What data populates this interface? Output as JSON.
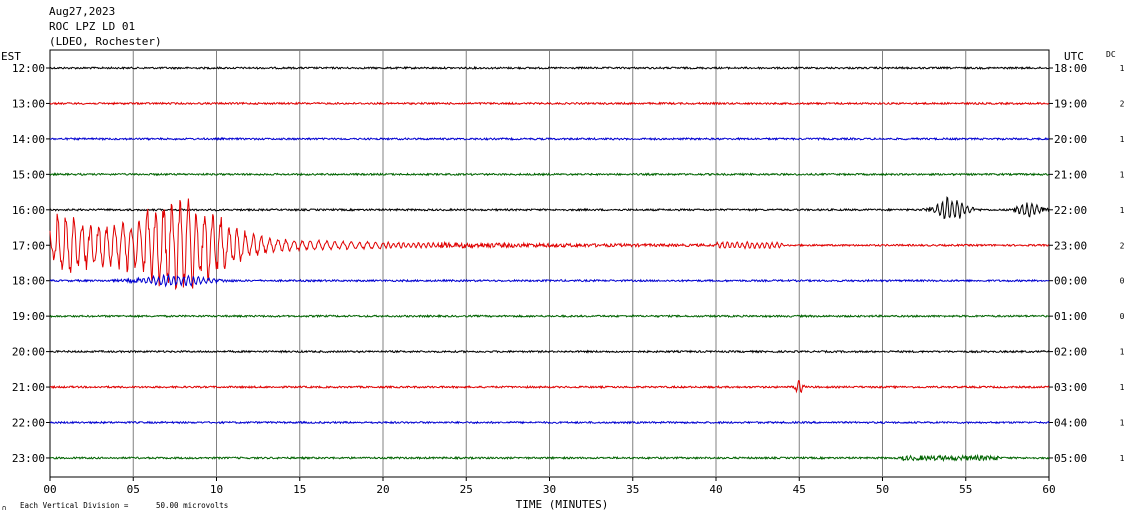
{
  "header": {
    "date": "Aug27,2023",
    "station": "ROC LPZ LD 01",
    "network": "(LDEO, Rochester)"
  },
  "axes": {
    "left_zone": "EST",
    "right_zone": "UTC",
    "dc_label": "DC",
    "xlabel": "TIME (MINUTES)",
    "scale_note": "Each Vertical Division =",
    "scale_value": "50.00 microvolts",
    "corner_mark": "∩"
  },
  "chart_data": {
    "type": "line",
    "title": "",
    "xlabel": "TIME (MINUTES)",
    "xlim": [
      0,
      60
    ],
    "x_ticks": [
      "00",
      "05",
      "10",
      "15",
      "20",
      "25",
      "30",
      "35",
      "40",
      "45",
      "50",
      "55",
      "60"
    ],
    "grid": true,
    "trace_colors": [
      "#000000",
      "#e00000",
      "#0000d0",
      "#006400"
    ],
    "rows": [
      {
        "est": "12:00",
        "utc": "18:00",
        "dc": "1"
      },
      {
        "est": "13:00",
        "utc": "19:00",
        "dc": "2"
      },
      {
        "est": "14:00",
        "utc": "20:00",
        "dc": "1"
      },
      {
        "est": "15:00",
        "utc": "21:00",
        "dc": "1"
      },
      {
        "est": "16:00",
        "utc": "22:00",
        "dc": "1"
      },
      {
        "est": "17:00",
        "utc": "23:00",
        "dc": "2"
      },
      {
        "est": "18:00",
        "utc": "00:00",
        "dc": "0"
      },
      {
        "est": "19:00",
        "utc": "01:00",
        "dc": "0"
      },
      {
        "est": "20:00",
        "utc": "02:00",
        "dc": "1"
      },
      {
        "est": "21:00",
        "utc": "03:00",
        "dc": "1"
      },
      {
        "est": "22:00",
        "utc": "04:00",
        "dc": "1"
      },
      {
        "est": "23:00",
        "utc": "05:00",
        "dc": "1"
      }
    ]
  }
}
